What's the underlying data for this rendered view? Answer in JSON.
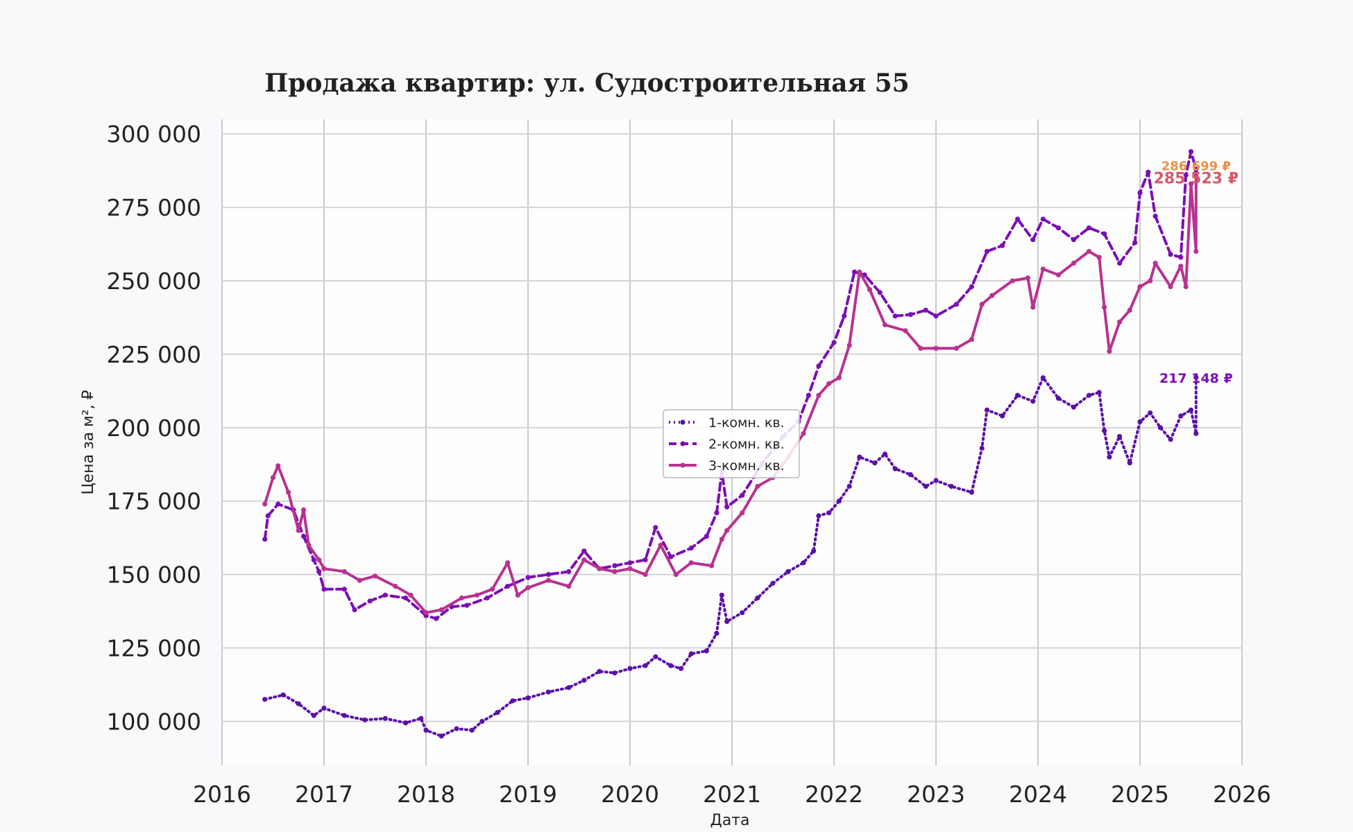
{
  "chart_data": {
    "type": "line",
    "title": "Продажа квартир: ул. Судостроительная 55",
    "xlabel": "Дата",
    "ylabel": "Цена за м², ₽",
    "xlim": [
      2016.0,
      2026.0
    ],
    "ylim": [
      85000,
      305000
    ],
    "x_ticks": [
      "2016",
      "2017",
      "2018",
      "2019",
      "2020",
      "2021",
      "2022",
      "2023",
      "2024",
      "2025",
      "2026"
    ],
    "y_ticks": [
      "100 000",
      "125 000",
      "150 000",
      "175 000",
      "200 000",
      "225 000",
      "250 000",
      "275 000",
      "300 000"
    ],
    "grid": true,
    "legend_position": "center",
    "series": [
      {
        "name": "1-комн. кв.",
        "color": "#5b10a8",
        "dash": "dotted",
        "points": [
          [
            2016.42,
            107500
          ],
          [
            2016.6,
            109000
          ],
          [
            2016.75,
            106000
          ],
          [
            2016.9,
            102000
          ],
          [
            2017.0,
            104500
          ],
          [
            2017.2,
            102000
          ],
          [
            2017.4,
            100500
          ],
          [
            2017.6,
            101000
          ],
          [
            2017.8,
            99500
          ],
          [
            2017.95,
            101000
          ],
          [
            2018.0,
            97000
          ],
          [
            2018.15,
            95000
          ],
          [
            2018.3,
            97500
          ],
          [
            2018.45,
            97000
          ],
          [
            2018.55,
            100000
          ],
          [
            2018.7,
            103000
          ],
          [
            2018.85,
            107000
          ],
          [
            2019.0,
            108000
          ],
          [
            2019.2,
            110000
          ],
          [
            2019.4,
            111500
          ],
          [
            2019.55,
            114000
          ],
          [
            2019.7,
            117000
          ],
          [
            2019.85,
            116500
          ],
          [
            2020.0,
            118000
          ],
          [
            2020.15,
            119000
          ],
          [
            2020.25,
            122000
          ],
          [
            2020.4,
            119000
          ],
          [
            2020.5,
            118000
          ],
          [
            2020.6,
            123000
          ],
          [
            2020.75,
            124000
          ],
          [
            2020.85,
            130000
          ],
          [
            2020.9,
            143000
          ],
          [
            2020.95,
            134000
          ],
          [
            2021.1,
            137000
          ],
          [
            2021.25,
            142000
          ],
          [
            2021.4,
            147000
          ],
          [
            2021.55,
            151000
          ],
          [
            2021.7,
            154000
          ],
          [
            2021.8,
            158000
          ],
          [
            2021.85,
            170000
          ],
          [
            2021.95,
            171000
          ],
          [
            2022.05,
            175000
          ],
          [
            2022.15,
            180000
          ],
          [
            2022.25,
            190000
          ],
          [
            2022.4,
            188000
          ],
          [
            2022.5,
            191000
          ],
          [
            2022.6,
            186000
          ],
          [
            2022.75,
            184000
          ],
          [
            2022.9,
            180000
          ],
          [
            2023.0,
            182000
          ],
          [
            2023.15,
            180000
          ],
          [
            2023.35,
            178000
          ],
          [
            2023.45,
            193000
          ],
          [
            2023.5,
            206000
          ],
          [
            2023.65,
            204000
          ],
          [
            2023.8,
            211000
          ],
          [
            2023.95,
            209000
          ],
          [
            2024.05,
            217000
          ],
          [
            2024.2,
            210000
          ],
          [
            2024.35,
            207000
          ],
          [
            2024.5,
            211000
          ],
          [
            2024.6,
            212000
          ],
          [
            2024.65,
            199000
          ],
          [
            2024.7,
            190000
          ],
          [
            2024.8,
            197000
          ],
          [
            2024.9,
            188000
          ],
          [
            2025.0,
            202000
          ],
          [
            2025.1,
            205000
          ],
          [
            2025.2,
            200000
          ],
          [
            2025.3,
            196000
          ],
          [
            2025.4,
            204000
          ],
          [
            2025.5,
            206000
          ],
          [
            2025.55,
            198000
          ],
          [
            2025.55,
            217148
          ]
        ]
      },
      {
        "name": "2-комн. кв.",
        "color": "#7b0fb4",
        "dash": "dashed",
        "points": [
          [
            2016.42,
            162000
          ],
          [
            2016.45,
            170000
          ],
          [
            2016.55,
            174000
          ],
          [
            2016.7,
            172000
          ],
          [
            2016.8,
            163000
          ],
          [
            2016.9,
            155000
          ],
          [
            2016.95,
            151000
          ],
          [
            2017.0,
            145000
          ],
          [
            2017.2,
            145000
          ],
          [
            2017.3,
            138000
          ],
          [
            2017.45,
            141000
          ],
          [
            2017.6,
            143000
          ],
          [
            2017.8,
            142000
          ],
          [
            2018.0,
            136000
          ],
          [
            2018.1,
            135000
          ],
          [
            2018.25,
            139000
          ],
          [
            2018.4,
            139500
          ],
          [
            2018.6,
            142000
          ],
          [
            2018.8,
            146000
          ],
          [
            2019.0,
            149000
          ],
          [
            2019.2,
            150000
          ],
          [
            2019.4,
            151000
          ],
          [
            2019.55,
            158000
          ],
          [
            2019.7,
            152000
          ],
          [
            2019.85,
            153000
          ],
          [
            2020.0,
            154000
          ],
          [
            2020.15,
            155000
          ],
          [
            2020.25,
            166000
          ],
          [
            2020.4,
            156000
          ],
          [
            2020.6,
            159000
          ],
          [
            2020.75,
            163000
          ],
          [
            2020.85,
            171000
          ],
          [
            2020.9,
            185000
          ],
          [
            2020.95,
            173000
          ],
          [
            2021.1,
            177000
          ],
          [
            2021.3,
            188000
          ],
          [
            2021.5,
            197000
          ],
          [
            2021.65,
            202000
          ],
          [
            2021.75,
            211000
          ],
          [
            2021.85,
            221000
          ],
          [
            2022.0,
            229000
          ],
          [
            2022.1,
            238000
          ],
          [
            2022.2,
            253000
          ],
          [
            2022.3,
            252000
          ],
          [
            2022.45,
            246000
          ],
          [
            2022.6,
            238000
          ],
          [
            2022.75,
            238500
          ],
          [
            2022.9,
            240000
          ],
          [
            2023.0,
            238000
          ],
          [
            2023.2,
            242000
          ],
          [
            2023.35,
            248000
          ],
          [
            2023.5,
            260000
          ],
          [
            2023.65,
            262000
          ],
          [
            2023.8,
            271000
          ],
          [
            2023.95,
            264000
          ],
          [
            2024.05,
            271000
          ],
          [
            2024.2,
            268000
          ],
          [
            2024.35,
            264000
          ],
          [
            2024.5,
            268000
          ],
          [
            2024.65,
            266000
          ],
          [
            2024.8,
            256000
          ],
          [
            2024.95,
            263000
          ],
          [
            2025.0,
            280000
          ],
          [
            2025.08,
            287000
          ],
          [
            2025.15,
            272000
          ],
          [
            2025.3,
            259000
          ],
          [
            2025.4,
            258000
          ],
          [
            2025.45,
            286000
          ],
          [
            2025.5,
            294000
          ],
          [
            2025.55,
            288000
          ],
          [
            2025.55,
            286699
          ]
        ]
      },
      {
        "name": "3-комн. кв.",
        "color": "#b83290",
        "dash": "solid",
        "points": [
          [
            2016.42,
            174000
          ],
          [
            2016.5,
            183000
          ],
          [
            2016.55,
            187000
          ],
          [
            2016.65,
            178000
          ],
          [
            2016.75,
            165000
          ],
          [
            2016.8,
            172000
          ],
          [
            2016.85,
            160000
          ],
          [
            2016.95,
            155000
          ],
          [
            2017.0,
            152000
          ],
          [
            2017.2,
            151000
          ],
          [
            2017.35,
            148000
          ],
          [
            2017.5,
            149500
          ],
          [
            2017.7,
            146000
          ],
          [
            2017.85,
            143000
          ],
          [
            2018.0,
            137000
          ],
          [
            2018.15,
            138000
          ],
          [
            2018.35,
            142000
          ],
          [
            2018.5,
            143000
          ],
          [
            2018.65,
            145000
          ],
          [
            2018.8,
            154000
          ],
          [
            2018.9,
            143000
          ],
          [
            2019.0,
            145500
          ],
          [
            2019.2,
            148000
          ],
          [
            2019.4,
            146000
          ],
          [
            2019.55,
            155000
          ],
          [
            2019.7,
            152000
          ],
          [
            2019.85,
            151000
          ],
          [
            2020.0,
            152000
          ],
          [
            2020.15,
            150000
          ],
          [
            2020.3,
            160000
          ],
          [
            2020.45,
            150000
          ],
          [
            2020.6,
            154000
          ],
          [
            2020.8,
            153000
          ],
          [
            2020.9,
            162000
          ],
          [
            2020.95,
            165000
          ],
          [
            2021.1,
            171000
          ],
          [
            2021.25,
            180000
          ],
          [
            2021.4,
            183000
          ],
          [
            2021.55,
            190000
          ],
          [
            2021.7,
            198000
          ],
          [
            2021.85,
            211000
          ],
          [
            2021.95,
            215000
          ],
          [
            2022.05,
            217000
          ],
          [
            2022.15,
            228000
          ],
          [
            2022.25,
            253000
          ],
          [
            2022.35,
            247000
          ],
          [
            2022.5,
            235000
          ],
          [
            2022.7,
            233000
          ],
          [
            2022.85,
            227000
          ],
          [
            2023.0,
            227000
          ],
          [
            2023.2,
            227000
          ],
          [
            2023.35,
            230000
          ],
          [
            2023.45,
            242000
          ],
          [
            2023.55,
            245000
          ],
          [
            2023.75,
            250000
          ],
          [
            2023.9,
            251000
          ],
          [
            2023.95,
            241000
          ],
          [
            2024.05,
            254000
          ],
          [
            2024.2,
            252000
          ],
          [
            2024.35,
            256000
          ],
          [
            2024.5,
            260000
          ],
          [
            2024.6,
            258000
          ],
          [
            2024.65,
            241000
          ],
          [
            2024.7,
            226000
          ],
          [
            2024.8,
            236000
          ],
          [
            2024.9,
            240000
          ],
          [
            2025.0,
            248000
          ],
          [
            2025.1,
            250000
          ],
          [
            2025.15,
            256000
          ],
          [
            2025.3,
            248000
          ],
          [
            2025.4,
            255000
          ],
          [
            2025.45,
            248000
          ],
          [
            2025.5,
            283000
          ],
          [
            2025.55,
            260000
          ],
          [
            2025.55,
            285523
          ]
        ]
      }
    ],
    "annotations": [
      {
        "text": "286 699 ₽",
        "color": "#e8914a",
        "x": 2025.55,
        "y": 286699
      },
      {
        "text": "285 523 ₽",
        "color": "#d45a6a",
        "x": 2025.55,
        "y": 285523
      },
      {
        "text": "217 148 ₽",
        "color": "#7b0fb4",
        "x": 2025.55,
        "y": 217148
      }
    ]
  }
}
